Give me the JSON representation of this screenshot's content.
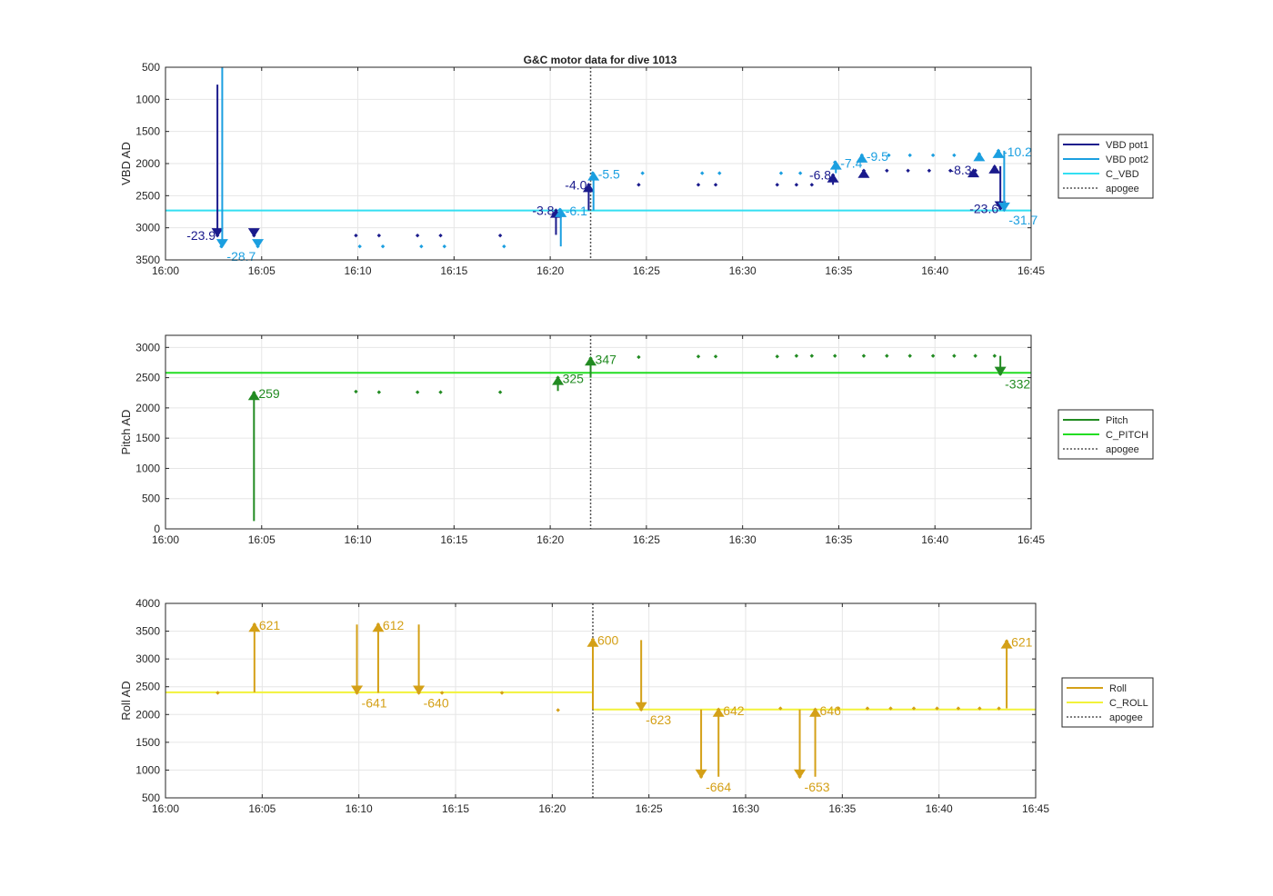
{
  "title": "G&C motor data for dive 1013",
  "x_tick_labels": [
    "16:00",
    "16:05",
    "16:10",
    "16:15",
    "16:20",
    "16:25",
    "16:30",
    "16:35",
    "16:40",
    "16:45"
  ],
  "chart_data": [
    {
      "type": "line",
      "ylabel": "VBD AD",
      "xlim_min": [
        0,
        45
      ],
      "ylim": [
        3500,
        500
      ],
      "y_reversed": true,
      "yticks": [
        500,
        1000,
        1500,
        2000,
        2500,
        3000,
        3500
      ],
      "grid": true,
      "apogee_min": 22.1,
      "legend": {
        "placement": "outside-right",
        "entries": [
          {
            "label": "VBD pot1",
            "color": "#1a1a8c",
            "style": "solid"
          },
          {
            "label": "VBD pot2",
            "color": "#1b9fe0",
            "style": "solid"
          },
          {
            "label": "C_VBD",
            "color": "#33dff2",
            "style": "solid"
          },
          {
            "label": "apogee",
            "color": "#555555",
            "style": "dotted"
          }
        ]
      },
      "reference_line": {
        "name": "C_VBD",
        "y": 2730,
        "color": "#33dff2"
      },
      "series": [
        {
          "name": "VBD pot1",
          "color": "#1a1a8c",
          "points": [
            [
              2.7,
              3120
            ],
            [
              4.6,
              3120
            ],
            [
              9.9,
              3120
            ],
            [
              11.1,
              3120
            ],
            [
              13.1,
              3120
            ],
            [
              14.3,
              3120
            ],
            [
              17.4,
              3120
            ],
            [
              20.3,
              2730
            ],
            [
              22,
              2330
            ],
            [
              24.6,
              2330
            ],
            [
              27.7,
              2330
            ],
            [
              28.6,
              2330
            ],
            [
              31.8,
              2330
            ],
            [
              32.8,
              2330
            ],
            [
              33.6,
              2330
            ],
            [
              34.7,
              2180
            ],
            [
              36.3,
              2110
            ],
            [
              37.5,
              2110
            ],
            [
              38.6,
              2110
            ],
            [
              39.7,
              2110
            ],
            [
              40.8,
              2110
            ],
            [
              42.1,
              2110
            ],
            [
              43.1,
              2050
            ],
            [
              43.4,
              2700
            ]
          ]
        },
        {
          "name": "VBD pot2",
          "color": "#1b9fe0",
          "points": [
            [
              2.9,
              3290
            ],
            [
              4.8,
              3290
            ],
            [
              10.1,
              3290
            ],
            [
              11.3,
              3290
            ],
            [
              13.3,
              3290
            ],
            [
              14.5,
              3290
            ],
            [
              17.6,
              3290
            ],
            [
              20.5,
              2720
            ],
            [
              22.2,
              2150
            ],
            [
              24.8,
              2150
            ],
            [
              27.9,
              2150
            ],
            [
              28.8,
              2150
            ],
            [
              32,
              2150
            ],
            [
              33,
              2150
            ],
            [
              34.8,
              1980
            ],
            [
              36.2,
              1870
            ],
            [
              37.6,
              1870
            ],
            [
              38.7,
              1870
            ],
            [
              39.9,
              1870
            ],
            [
              41,
              1870
            ],
            [
              42.3,
              1850
            ],
            [
              43.3,
              1800
            ],
            [
              43.6,
              2720
            ]
          ]
        }
      ],
      "moves": [
        {
          "series": "VBD pot1",
          "x": 2.7,
          "from": 770,
          "to": 3120,
          "label": "-23.9",
          "color": "#1a1a8c"
        },
        {
          "series": "VBD pot2",
          "x": 2.95,
          "from": 500,
          "to": 3290,
          "label": "-28.7",
          "color": "#1b9fe0"
        },
        {
          "series": "VBD pot1",
          "x": 4.6,
          "from": 3120,
          "to": 3120,
          "label": "",
          "color": "#1a1a8c"
        },
        {
          "series": "VBD pot2",
          "x": 4.8,
          "from": 3290,
          "to": 3290,
          "label": "",
          "color": "#1b9fe0"
        },
        {
          "series": "VBD pot1",
          "x": 20.3,
          "from": 3110,
          "to": 2730,
          "label": "-3.8",
          "color": "#1a1a8c"
        },
        {
          "series": "VBD pot2",
          "x": 20.55,
          "from": 3290,
          "to": 2720,
          "label": "-6.1",
          "color": "#1b9fe0"
        },
        {
          "series": "VBD pot1",
          "x": 22.0,
          "from": 2730,
          "to": 2330,
          "label": "-4.0",
          "color": "#1a1a8c"
        },
        {
          "series": "VBD pot2",
          "x": 22.25,
          "from": 2730,
          "to": 2150,
          "label": "-5.5",
          "color": "#1b9fe0"
        },
        {
          "series": "VBD pot1",
          "x": 34.7,
          "from": 2330,
          "to": 2180,
          "label": "-6.8",
          "color": "#1a1a8c"
        },
        {
          "series": "VBD pot2",
          "x": 34.85,
          "from": 2150,
          "to": 1980,
          "label": "-7.4",
          "color": "#1b9fe0"
        },
        {
          "series": "VBD pot1",
          "x": 36.3,
          "from": 2180,
          "to": 2110,
          "label": "",
          "color": "#1a1a8c"
        },
        {
          "series": "VBD pot2",
          "x": 36.2,
          "from": 1980,
          "to": 1870,
          "label": "-9.5",
          "color": "#1b9fe0"
        },
        {
          "series": "VBD pot1",
          "x": 42.0,
          "from": 2110,
          "to": 2100,
          "label": "-8.3",
          "color": "#1a1a8c"
        },
        {
          "series": "VBD pot2",
          "x": 42.3,
          "from": 1870,
          "to": 1850,
          "label": "",
          "color": "#1b9fe0"
        },
        {
          "series": "VBD pot1",
          "x": 43.1,
          "from": 2110,
          "to": 2040,
          "label": "",
          "color": "#1a1a8c"
        },
        {
          "series": "VBD pot2",
          "x": 43.3,
          "from": 1850,
          "to": 1800,
          "label": "-10.2",
          "color": "#1b9fe0"
        },
        {
          "series": "VBD pot1",
          "x": 43.4,
          "from": 2040,
          "to": 2700,
          "label": "-23.6",
          "color": "#1a1a8c"
        },
        {
          "series": "VBD pot2",
          "x": 43.6,
          "from": 1800,
          "to": 2720,
          "label": "-31.7",
          "color": "#1b9fe0"
        }
      ]
    },
    {
      "type": "line",
      "ylabel": "Pitch AD",
      "xlim_min": [
        0,
        45
      ],
      "ylim": [
        0,
        3200
      ],
      "yticks": [
        0,
        500,
        1000,
        1500,
        2000,
        2500,
        3000
      ],
      "grid": true,
      "apogee_min": 22.1,
      "legend": {
        "placement": "outside-right",
        "entries": [
          {
            "label": "Pitch",
            "color": "#228b22",
            "style": "solid"
          },
          {
            "label": "C_PITCH",
            "color": "#22dd22",
            "style": "solid"
          },
          {
            "label": "apogee",
            "color": "#555555",
            "style": "dotted"
          }
        ]
      },
      "reference_line": {
        "name": "C_PITCH",
        "y": 2580,
        "color": "#22dd22"
      },
      "series": [
        {
          "name": "Pitch",
          "color": "#228b22",
          "points": [
            [
              4.6,
              2250
            ],
            [
              9.9,
              2270
            ],
            [
              11.1,
              2260
            ],
            [
              13.1,
              2260
            ],
            [
              14.3,
              2260
            ],
            [
              17.4,
              2260
            ],
            [
              20.4,
              2500
            ],
            [
              22.1,
              2820
            ],
            [
              24.6,
              2840
            ],
            [
              27.7,
              2850
            ],
            [
              28.6,
              2850
            ],
            [
              31.8,
              2850
            ],
            [
              32.8,
              2860
            ],
            [
              33.6,
              2860
            ],
            [
              34.8,
              2860
            ],
            [
              36.3,
              2860
            ],
            [
              37.5,
              2860
            ],
            [
              38.7,
              2860
            ],
            [
              39.9,
              2860
            ],
            [
              41.0,
              2860
            ],
            [
              42.1,
              2860
            ],
            [
              43.1,
              2860
            ],
            [
              43.4,
              2560
            ]
          ]
        }
      ],
      "moves": [
        {
          "series": "Pitch",
          "x": 4.6,
          "from": 130,
          "to": 2250,
          "label": "259",
          "color": "#228b22"
        },
        {
          "series": "Pitch",
          "x": 20.4,
          "from": 2280,
          "to": 2500,
          "label": "325",
          "color": "#228b22"
        },
        {
          "series": "Pitch",
          "x": 22.1,
          "from": 2500,
          "to": 2820,
          "label": "347",
          "color": "#228b22"
        },
        {
          "series": "Pitch",
          "x": 43.4,
          "from": 2860,
          "to": 2560,
          "label": "-332",
          "color": "#228b22"
        }
      ]
    },
    {
      "type": "line",
      "ylabel": "Roll AD",
      "xlim_min": [
        0,
        45
      ],
      "ylim": [
        500,
        4000
      ],
      "yticks": [
        500,
        1000,
        1500,
        2000,
        2500,
        3000,
        3500,
        4000
      ],
      "grid": true,
      "apogee_min": 22.1,
      "legend": {
        "placement": "outside-right",
        "entries": [
          {
            "label": "Roll",
            "color": "#d4a017",
            "style": "solid"
          },
          {
            "label": "C_ROLL",
            "color": "#f2f23a",
            "style": "solid"
          },
          {
            "label": "apogee",
            "color": "#555555",
            "style": "dotted"
          }
        ]
      },
      "reference_line_segments": [
        {
          "name": "C_ROLL",
          "x0": 0,
          "x1": 22.1,
          "y": 2400,
          "color": "#f2f23a"
        },
        {
          "name": "C_ROLL",
          "x0": 22.1,
          "x1": 45,
          "y": 2090,
          "color": "#f2f23a"
        }
      ],
      "series": [
        {
          "name": "Roll",
          "color": "#d4a017",
          "points": [
            [
              2.7,
              2390
            ],
            [
              4.6,
              3620
            ],
            [
              9.9,
              2390
            ],
            [
              11.0,
              3620
            ],
            [
              13.1,
              2390
            ],
            [
              14.3,
              2390
            ],
            [
              17.4,
              2390
            ],
            [
              20.3,
              2080
            ],
            [
              22.1,
              3350
            ],
            [
              24.6,
              2090
            ],
            [
              27.7,
              880
            ],
            [
              28.6,
              2090
            ],
            [
              31.8,
              2110
            ],
            [
              32.8,
              880
            ],
            [
              33.6,
              2090
            ],
            [
              34.8,
              2110
            ],
            [
              36.3,
              2110
            ],
            [
              37.5,
              2110
            ],
            [
              38.7,
              2110
            ],
            [
              39.9,
              2110
            ],
            [
              41.0,
              2110
            ],
            [
              42.1,
              2110
            ],
            [
              43.1,
              2110
            ],
            [
              43.5,
              3320
            ]
          ]
        }
      ],
      "moves": [
        {
          "series": "Roll",
          "x": 4.6,
          "from": 2400,
          "to": 3620,
          "label": "621",
          "color": "#d4a017"
        },
        {
          "series": "Roll",
          "x": 9.9,
          "from": 3620,
          "to": 2390,
          "label": "-641",
          "color": "#d4a017"
        },
        {
          "series": "Roll",
          "x": 11.0,
          "from": 2390,
          "to": 3620,
          "label": "612",
          "color": "#d4a017"
        },
        {
          "series": "Roll",
          "x": 13.1,
          "from": 3620,
          "to": 2390,
          "label": "-640",
          "color": "#d4a017"
        },
        {
          "series": "Roll",
          "x": 22.1,
          "from": 2090,
          "to": 3350,
          "label": "600",
          "color": "#d4a017"
        },
        {
          "series": "Roll",
          "x": 24.6,
          "from": 3340,
          "to": 2090,
          "label": "-623",
          "color": "#d4a017"
        },
        {
          "series": "Roll",
          "x": 27.7,
          "from": 2090,
          "to": 880,
          "label": "-664",
          "color": "#d4a017"
        },
        {
          "series": "Roll",
          "x": 28.6,
          "from": 880,
          "to": 2090,
          "label": "642",
          "color": "#d4a017"
        },
        {
          "series": "Roll",
          "x": 32.8,
          "from": 2090,
          "to": 880,
          "label": "-653",
          "color": "#d4a017"
        },
        {
          "series": "Roll",
          "x": 33.6,
          "from": 880,
          "to": 2090,
          "label": "646",
          "color": "#d4a017"
        },
        {
          "series": "Roll",
          "x": 43.5,
          "from": 2110,
          "to": 3320,
          "label": "621",
          "color": "#d4a017"
        }
      ]
    }
  ]
}
